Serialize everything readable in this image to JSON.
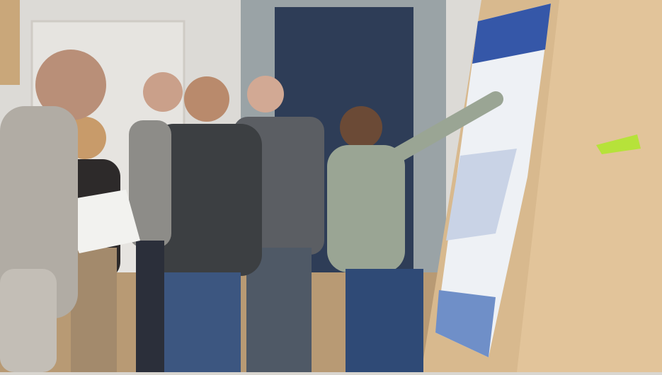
{
  "scene": {
    "description_type": "photo",
    "colors": {
      "wall": "#dcdad6",
      "door": "#2e3d57",
      "marble": "#9aa3a6",
      "floor": "#b89a74",
      "board": "#d8b98e",
      "poster_header": "#3557a8",
      "sticky_note": "#b6e23a"
    }
  }
}
